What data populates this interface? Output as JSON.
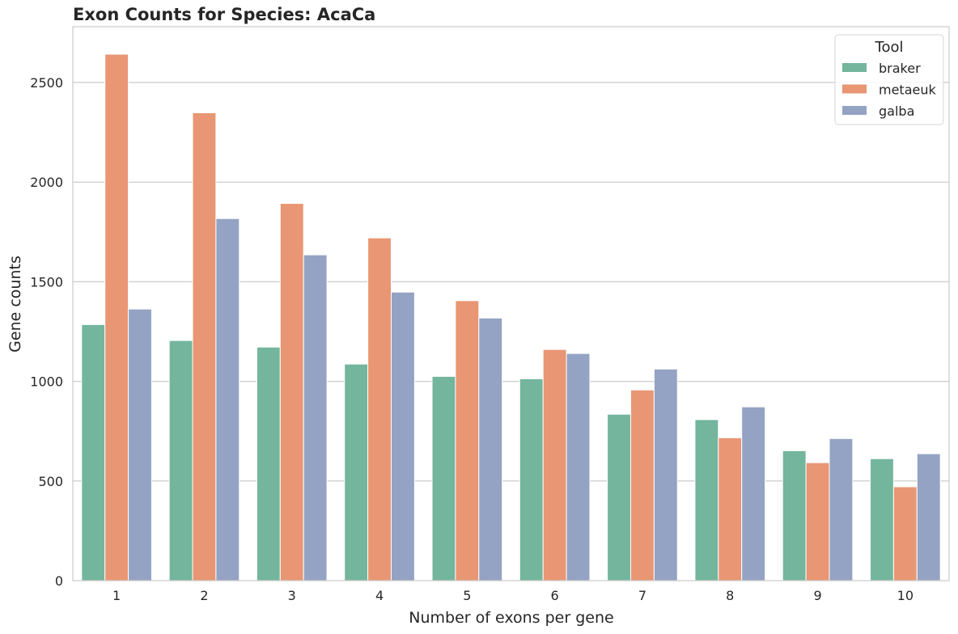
{
  "chart_data": {
    "type": "bar",
    "title": "Exon Counts for Species: AcaCa",
    "xlabel": "Number of exons per gene",
    "ylabel": "Gene counts",
    "categories": [
      "1",
      "2",
      "3",
      "4",
      "5",
      "6",
      "7",
      "8",
      "9",
      "10"
    ],
    "series": [
      {
        "name": "braker",
        "color": "#73b59d",
        "values": [
          1285,
          1205,
          1172,
          1087,
          1025,
          1013,
          835,
          808,
          652,
          612
        ]
      },
      {
        "name": "metaeuk",
        "color": "#e89673",
        "values": [
          2642,
          2348,
          1893,
          1720,
          1405,
          1160,
          957,
          717,
          592,
          471
        ]
      },
      {
        "name": "galba",
        "color": "#94a3c3",
        "values": [
          1363,
          1817,
          1635,
          1448,
          1318,
          1140,
          1062,
          872,
          713,
          637
        ]
      }
    ],
    "ylim": [
      0,
      2780
    ],
    "yticks": [
      0,
      500,
      1000,
      1500,
      2000,
      2500
    ],
    "grid": true,
    "legend": {
      "title": "Tool",
      "position": "top-right"
    }
  }
}
